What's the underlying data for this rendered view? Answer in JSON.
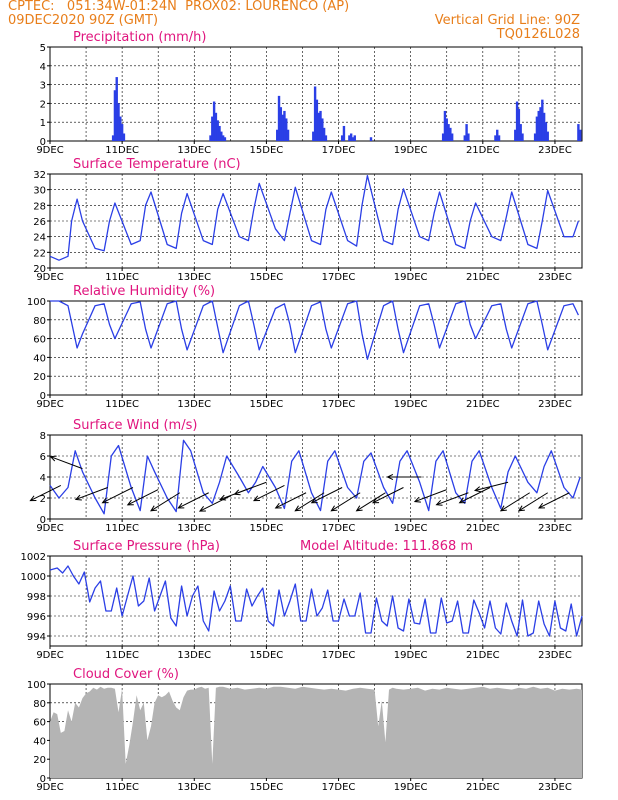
{
  "header": {
    "line1": "CPTEC:   051:34W-01:24N  PROX02: LOURENCO (AP)",
    "line2_left": "09DEC2020 90Z (GMT)",
    "line2_right": "Vertical Grid Line: 90Z",
    "line3_right": "TQ0126L028"
  },
  "colors": {
    "header": "#e87e1a",
    "title": "#e0157e",
    "line": "#2b3fe6",
    "bar": "#2b3fe6",
    "cloud": "#b4b4b4"
  },
  "x_ticks": [
    "9DEC",
    "11DEC",
    "13DEC",
    "15DEC",
    "17DEC",
    "19DEC",
    "21DEC",
    "23DEC"
  ],
  "chart_data": [
    {
      "type": "bar",
      "title": "Precipitation (mm/h)",
      "ylim": [
        0,
        5
      ],
      "yticks": [
        0,
        1,
        2,
        3,
        4,
        5
      ],
      "x_unit": "days since 9DEC 00Z",
      "x": [
        1.75,
        1.8,
        1.85,
        1.9,
        1.95,
        2.0,
        2.05,
        4.45,
        4.5,
        4.55,
        4.6,
        4.65,
        4.7,
        4.75,
        4.8,
        4.85,
        6.3,
        6.35,
        6.4,
        6.45,
        6.5,
        6.55,
        6.6,
        7.3,
        7.35,
        7.4,
        7.45,
        7.5,
        7.55,
        7.6,
        7.65,
        8.1,
        8.15,
        8.3,
        8.35,
        8.4,
        8.45,
        8.9,
        10.9,
        10.95,
        11.0,
        11.05,
        11.1,
        11.15,
        11.5,
        11.55,
        11.6,
        12.35,
        12.4,
        12.45,
        12.9,
        12.95,
        13.0,
        13.05,
        13.1,
        13.45,
        13.5,
        13.55,
        13.6,
        13.65,
        13.7,
        13.75,
        13.8,
        14.65,
        14.7
      ],
      "values": [
        0.3,
        2.7,
        3.4,
        2.0,
        1.3,
        0.9,
        0.4,
        0.3,
        1.3,
        2.1,
        1.5,
        1.1,
        0.8,
        0.5,
        0.3,
        0.2,
        0.6,
        2.4,
        1.8,
        1.4,
        1.6,
        1.2,
        0.6,
        0.5,
        2.9,
        2.2,
        1.5,
        1.6,
        1.2,
        0.7,
        0.3,
        0.3,
        0.8,
        0.3,
        0.4,
        0.2,
        0.3,
        0.2,
        0.4,
        1.6,
        1.2,
        0.9,
        0.7,
        0.4,
        0.3,
        0.9,
        0.4,
        0.3,
        0.6,
        0.3,
        0.6,
        2.1,
        1.7,
        0.9,
        0.4,
        0.4,
        1.3,
        1.6,
        1.8,
        2.2,
        1.5,
        1.0,
        0.5,
        0.9,
        0.6
      ]
    },
    {
      "type": "line",
      "title": "Surface Temperature (nC)",
      "ylim": [
        20,
        32
      ],
      "yticks": [
        20,
        22,
        24,
        26,
        28,
        30,
        32
      ],
      "x_unit": "days since 9DEC 00Z",
      "x": [
        0.0,
        0.25,
        0.5,
        0.6,
        0.75,
        0.9,
        1.25,
        1.5,
        1.65,
        1.8,
        2.25,
        2.5,
        2.65,
        2.8,
        3.25,
        3.5,
        3.65,
        3.8,
        4.25,
        4.5,
        4.65,
        4.8,
        5.25,
        5.5,
        5.65,
        5.8,
        6.25,
        6.5,
        6.65,
        6.8,
        7.25,
        7.5,
        7.65,
        7.8,
        8.25,
        8.5,
        8.65,
        8.8,
        9.25,
        9.5,
        9.65,
        9.8,
        10.25,
        10.5,
        10.65,
        10.8,
        11.25,
        11.5,
        11.65,
        11.8,
        12.25,
        12.5,
        12.65,
        12.8,
        13.25,
        13.5,
        13.65,
        13.8,
        14.25,
        14.5,
        14.65
      ],
      "values": [
        21.5,
        21.0,
        21.5,
        26.0,
        28.8,
        26.0,
        22.5,
        22.2,
        26.0,
        28.3,
        23.0,
        23.5,
        28.0,
        29.7,
        23.0,
        22.5,
        27.0,
        29.5,
        23.5,
        23.0,
        27.5,
        29.5,
        24.0,
        23.5,
        27.5,
        30.8,
        25.0,
        23.5,
        27.0,
        30.3,
        23.5,
        23.0,
        27.5,
        29.7,
        23.5,
        22.8,
        28.0,
        31.8,
        23.5,
        23.0,
        27.5,
        30.1,
        24.0,
        23.5,
        27.0,
        29.7,
        23.0,
        22.5,
        26.0,
        28.3,
        24.0,
        23.5,
        26.5,
        29.7,
        23.0,
        22.5,
        26.0,
        29.9,
        24.0,
        24.0,
        26.0
      ]
    },
    {
      "type": "line",
      "title": "Relative Humidity (%)",
      "ylim": [
        0,
        100
      ],
      "yticks": [
        0,
        20,
        40,
        60,
        80,
        100
      ],
      "x_unit": "days since 9DEC 00Z",
      "x": [
        0.0,
        0.25,
        0.5,
        0.75,
        0.9,
        1.25,
        1.5,
        1.65,
        1.8,
        2.25,
        2.5,
        2.65,
        2.8,
        3.25,
        3.5,
        3.65,
        3.8,
        4.25,
        4.5,
        4.65,
        4.8,
        5.25,
        5.5,
        5.65,
        5.8,
        6.25,
        6.5,
        6.65,
        6.8,
        7.25,
        7.5,
        7.65,
        7.8,
        8.25,
        8.5,
        8.65,
        8.8,
        9.25,
        9.5,
        9.65,
        9.8,
        10.25,
        10.5,
        10.65,
        10.8,
        11.25,
        11.5,
        11.65,
        11.8,
        12.25,
        12.5,
        12.65,
        12.8,
        13.25,
        13.5,
        13.65,
        13.8,
        14.25,
        14.5,
        14.65
      ],
      "values": [
        100,
        100,
        95,
        50,
        65,
        95,
        97,
        75,
        60,
        97,
        99,
        70,
        50,
        97,
        100,
        70,
        48,
        95,
        100,
        72,
        45,
        95,
        100,
        75,
        48,
        92,
        97,
        75,
        45,
        95,
        99,
        70,
        50,
        97,
        100,
        65,
        38,
        95,
        100,
        70,
        45,
        95,
        97,
        75,
        50,
        97,
        100,
        75,
        60,
        95,
        97,
        70,
        50,
        97,
        100,
        75,
        48,
        95,
        97,
        85
      ]
    },
    {
      "type": "line",
      "title": "Surface Wind (m/s)",
      "ylim": [
        0,
        8
      ],
      "yticks": [
        0,
        2,
        4,
        6,
        8
      ],
      "x_unit": "days since 9DEC 00Z",
      "x": [
        0.0,
        0.25,
        0.5,
        0.7,
        0.9,
        1.25,
        1.5,
        1.7,
        1.9,
        2.25,
        2.5,
        2.7,
        2.9,
        3.25,
        3.5,
        3.7,
        3.9,
        4.25,
        4.5,
        4.7,
        4.9,
        5.25,
        5.5,
        5.7,
        5.9,
        6.25,
        6.5,
        6.7,
        6.9,
        7.25,
        7.5,
        7.7,
        7.9,
        8.25,
        8.5,
        8.7,
        8.9,
        9.25,
        9.5,
        9.7,
        9.9,
        10.25,
        10.5,
        10.7,
        10.9,
        11.25,
        11.5,
        11.7,
        11.9,
        12.25,
        12.5,
        12.7,
        12.9,
        13.25,
        13.5,
        13.7,
        13.9,
        14.25,
        14.5,
        14.7
      ],
      "values": [
        3.2,
        2.0,
        3.0,
        6.5,
        4.5,
        2.0,
        0.5,
        6.0,
        7.0,
        3.0,
        0.8,
        6.0,
        4.5,
        2.0,
        0.7,
        7.5,
        6.5,
        2.5,
        1.5,
        3.5,
        6.0,
        4.0,
        2.5,
        3.5,
        5.0,
        3.0,
        1.0,
        5.5,
        6.5,
        2.5,
        0.8,
        5.5,
        6.5,
        3.0,
        2.0,
        5.5,
        6.3,
        3.0,
        1.5,
        5.5,
        6.5,
        3.5,
        0.8,
        5.5,
        6.5,
        2.5,
        1.5,
        5.5,
        6.5,
        3.0,
        1.0,
        4.5,
        6.0,
        3.5,
        2.5,
        5.0,
        6.5,
        3.0,
        2.0,
        4.0
      ]
    },
    {
      "type": "line",
      "title": "Surface Pressure (hPa)",
      "annotation": "Model Altitude: 111.868 m",
      "ylim": [
        993,
        1002
      ],
      "yticks": [
        994,
        996,
        998,
        1000,
        1002
      ],
      "x_unit": "days since 9DEC 00Z",
      "x": [
        0.0,
        0.2,
        0.35,
        0.5,
        0.65,
        0.8,
        0.95,
        1.1,
        1.25,
        1.4,
        1.55,
        1.7,
        1.85,
        2.0,
        2.15,
        2.3,
        2.45,
        2.6,
        2.75,
        2.9,
        3.05,
        3.2,
        3.35,
        3.5,
        3.65,
        3.8,
        3.95,
        4.1,
        4.25,
        4.4,
        4.55,
        4.7,
        4.85,
        5.0,
        5.15,
        5.3,
        5.45,
        5.6,
        5.75,
        5.9,
        6.05,
        6.2,
        6.35,
        6.5,
        6.65,
        6.8,
        6.95,
        7.1,
        7.25,
        7.4,
        7.55,
        7.7,
        7.85,
        8.0,
        8.15,
        8.3,
        8.45,
        8.6,
        8.75,
        8.9,
        9.05,
        9.2,
        9.35,
        9.5,
        9.65,
        9.8,
        9.95,
        10.1,
        10.25,
        10.4,
        10.55,
        10.7,
        10.85,
        11.0,
        11.15,
        11.3,
        11.45,
        11.6,
        11.75,
        11.9,
        12.05,
        12.2,
        12.35,
        12.5,
        12.65,
        12.8,
        12.95,
        13.1,
        13.25,
        13.4,
        13.55,
        13.7,
        13.85,
        14.0,
        14.15,
        14.3,
        14.45,
        14.6,
        14.75
      ],
      "values": [
        1000.6,
        1000.8,
        1000.3,
        1001.0,
        1000.0,
        999.2,
        1000.4,
        997.4,
        998.8,
        999.5,
        996.5,
        996.5,
        998.8,
        996.0,
        998.0,
        1000.0,
        997.0,
        997.5,
        999.8,
        996.5,
        998.0,
        999.5,
        995.8,
        995.0,
        999.0,
        996.0,
        998.0,
        999.0,
        995.5,
        994.5,
        998.5,
        996.5,
        997.5,
        999.0,
        995.5,
        995.5,
        998.7,
        997.0,
        998.0,
        998.8,
        995.5,
        995.0,
        998.6,
        996.0,
        997.5,
        999.2,
        995.5,
        995.5,
        998.7,
        996.0,
        996.8,
        998.6,
        995.5,
        995.5,
        997.7,
        996.0,
        996.0,
        998.3,
        994.3,
        994.3,
        997.8,
        995.5,
        995.0,
        998.0,
        994.8,
        994.5,
        997.7,
        995.3,
        995.2,
        997.7,
        994.3,
        994.3,
        997.8,
        995.3,
        995.5,
        997.5,
        994.3,
        994.3,
        997.6,
        996.3,
        994.8,
        997.5,
        994.8,
        994.2,
        997.3,
        995.5,
        994.0,
        997.6,
        994.0,
        994.3,
        997.5,
        995.2,
        994.0,
        997.5,
        994.8,
        994.5,
        997.2,
        994.0,
        996.0
      ]
    },
    {
      "type": "area",
      "title": "Cloud Cover (%)",
      "ylim": [
        0,
        100
      ],
      "yticks": [
        0,
        20,
        40,
        60,
        80,
        100
      ],
      "x_unit": "days since 9DEC 00Z",
      "x": [
        0.0,
        0.1,
        0.2,
        0.3,
        0.4,
        0.5,
        0.6,
        0.7,
        0.8,
        0.9,
        1.0,
        1.1,
        1.2,
        1.3,
        1.4,
        1.5,
        1.6,
        1.7,
        1.8,
        1.9,
        2.0,
        2.1,
        2.2,
        2.3,
        2.4,
        2.5,
        2.6,
        2.7,
        2.8,
        2.9,
        3.0,
        3.1,
        3.2,
        3.3,
        3.4,
        3.5,
        3.6,
        3.7,
        3.8,
        3.9,
        4.0,
        4.1,
        4.2,
        4.3,
        4.4,
        4.5,
        4.6,
        4.7,
        4.8,
        4.9,
        5.0,
        5.2,
        5.4,
        5.6,
        5.8,
        6.0,
        6.2,
        6.4,
        6.6,
        6.8,
        7.0,
        7.2,
        7.4,
        7.6,
        7.8,
        8.0,
        8.2,
        8.4,
        8.6,
        8.8,
        9.0,
        9.1,
        9.2,
        9.3,
        9.4,
        9.5,
        9.6,
        9.8,
        10.0,
        10.2,
        10.4,
        10.6,
        10.8,
        11.0,
        11.2,
        11.4,
        11.6,
        11.8,
        12.0,
        12.2,
        12.4,
        12.6,
        12.8,
        13.0,
        13.2,
        13.4,
        13.6,
        13.8,
        14.0,
        14.2,
        14.4,
        14.6,
        14.75
      ],
      "values": [
        60,
        70,
        68,
        48,
        50,
        72,
        60,
        80,
        75,
        85,
        90,
        92,
        96,
        94,
        97,
        95,
        96,
        96,
        95,
        70,
        95,
        15,
        35,
        60,
        88,
        72,
        80,
        40,
        55,
        80,
        88,
        86,
        88,
        92,
        82,
        75,
        72,
        86,
        93,
        94,
        94,
        96,
        97,
        95,
        96,
        15,
        96,
        97,
        97,
        96,
        95,
        96,
        94,
        95,
        96,
        95,
        97,
        97,
        96,
        95,
        97,
        96,
        95,
        94,
        95,
        94,
        93,
        95,
        96,
        95,
        94,
        55,
        82,
        38,
        94,
        96,
        95,
        94,
        95,
        96,
        93,
        95,
        94,
        96,
        95,
        94,
        95,
        96,
        97,
        95,
        96,
        95,
        94,
        96,
        95,
        97,
        95,
        96,
        93,
        95,
        94,
        95,
        94
      ]
    }
  ],
  "wind_vectors": {
    "x": [
      0.3,
      0.9,
      1.6,
      2.3,
      3.0,
      3.6,
      4.4,
      5.0,
      5.6,
      6.0,
      6.5,
      7.1,
      7.6,
      8.1,
      8.6,
      9.3,
      9.8,
      10.3,
      11.0,
      11.6,
      12.2,
      12.7,
      13.3,
      13.8,
      14.4
    ],
    "y": [
      3.2,
      4.8,
      3.0,
      3.0,
      2.8,
      2.5,
      2.5,
      2.2,
      3.0,
      3.5,
      3.2,
      2.5,
      2.5,
      3.0,
      2.5,
      2.5,
      3.0,
      4.0,
      2.8,
      2.5,
      3.0,
      3.5,
      2.5,
      2.5,
      2.5
    ],
    "dx": [
      -4.0,
      -4.0,
      -4.0,
      -4.0,
      -4.0,
      -4.0,
      -4.0,
      -4.0,
      -4.0,
      -4.0,
      -4.0,
      -4.0,
      -4.0,
      -4.0,
      -4.0,
      -4.0,
      -4.0,
      -4.0,
      -4.0,
      -4.0,
      -4.0,
      -4.0,
      -4.0,
      -4.0,
      -4.0
    ],
    "dy": [
      -2.0,
      1.5,
      -1.5,
      -2.0,
      -2.0,
      -2.5,
      -2.0,
      -2.0,
      -1.5,
      -1.5,
      -2.0,
      -2.0,
      -2.5,
      -2.0,
      -2.5,
      -2.5,
      -2.0,
      0.0,
      -1.5,
      -1.5,
      -2.0,
      -1.0,
      -2.5,
      -2.5,
      -2.0
    ]
  }
}
